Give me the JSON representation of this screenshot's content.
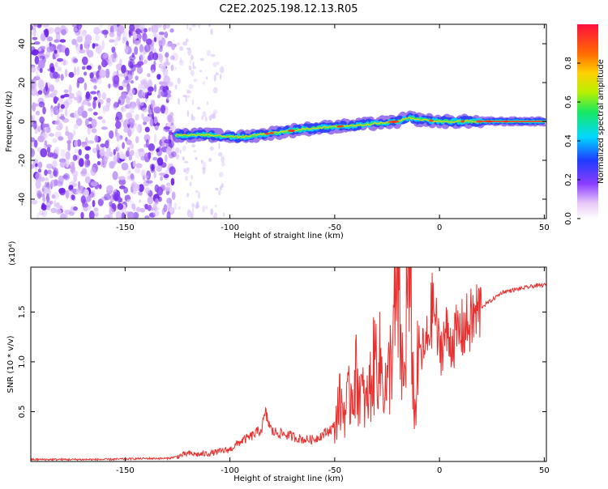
{
  "title": "C2E2.2025.198.12.13.R05",
  "chart_data": [
    {
      "type": "heatmap",
      "xlabel": "Height of straight line (km)",
      "ylabel": "Frequency (Hz)",
      "xlim": [
        -195,
        51
      ],
      "ylim": [
        -50,
        50
      ],
      "xticks": [
        -150,
        -100,
        -50,
        0,
        50
      ],
      "yticks": [
        -40,
        -20,
        0,
        20,
        40
      ],
      "noise_boundary_x": -126,
      "ridge": {
        "x": [
          -126,
          -110,
          -95,
          -80,
          -65,
          -55,
          -40,
          -30,
          -20,
          -15,
          -10,
          0,
          10,
          20,
          30,
          40,
          50
        ],
        "y": [
          -7,
          -7,
          -8,
          -6,
          -4,
          -3,
          -2,
          -1,
          0,
          2,
          1,
          0,
          0,
          0,
          0,
          0,
          0
        ]
      },
      "colorbar": {
        "label": "Normalized spectral amplitude",
        "range": [
          0,
          1
        ],
        "ticks": [
          0.0,
          0.2,
          0.4,
          0.6,
          0.8
        ]
      }
    },
    {
      "type": "line",
      "xlabel": "Height of straight line (km)",
      "ylabel": "SNR (10 * v/v)",
      "multiplier": "(x10⁴)",
      "xlim": [
        -195,
        51
      ],
      "ylim": [
        0,
        1.95
      ],
      "xticks": [
        -150,
        -100,
        -50,
        0,
        50
      ],
      "yticks": [
        0.5,
        1.0,
        1.5
      ],
      "yticklabels": [
        "0.5",
        "1.0",
        "1.5"
      ],
      "color": "#e8312f",
      "x": [
        -195,
        -180,
        -160,
        -140,
        -130,
        -125,
        -120,
        -115,
        -110,
        -105,
        -100,
        -95,
        -90,
        -85,
        -83,
        -80,
        -75,
        -70,
        -65,
        -60,
        -55,
        -50,
        -48,
        -45,
        -40,
        -35,
        -30,
        -25,
        -22,
        -20,
        -17,
        -15,
        -13,
        -12,
        -10,
        -7,
        -5,
        -3,
        0,
        3,
        5,
        10,
        15,
        20,
        25,
        30,
        35,
        40,
        45,
        50
      ],
      "y": [
        0.02,
        0.02,
        0.02,
        0.03,
        0.03,
        0.05,
        0.08,
        0.07,
        0.08,
        0.1,
        0.12,
        0.2,
        0.25,
        0.32,
        0.48,
        0.3,
        0.28,
        0.25,
        0.22,
        0.22,
        0.28,
        0.35,
        0.6,
        0.5,
        0.85,
        0.55,
        1.1,
        0.7,
        1.3,
        1.6,
        0.7,
        1.95,
        1.2,
        0.4,
        1.1,
        1.1,
        1.3,
        1.6,
        1.1,
        1.3,
        1.2,
        1.3,
        1.4,
        1.55,
        1.62,
        1.7,
        1.72,
        1.74,
        1.76,
        1.77
      ]
    }
  ]
}
